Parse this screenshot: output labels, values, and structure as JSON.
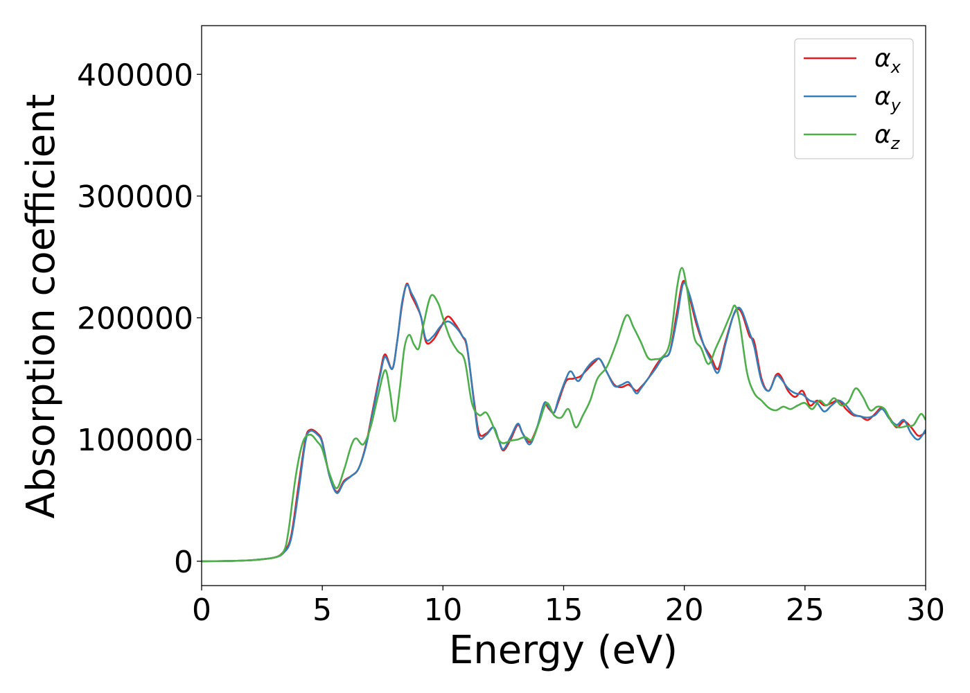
{
  "chart_data": {
    "type": "line",
    "title": "",
    "xlabel": "Energy (eV)",
    "ylabel": "Absorption coefficient",
    "xlim": [
      0,
      30
    ],
    "ylim": [
      -20000,
      440000
    ],
    "xticks": [
      0,
      5,
      10,
      15,
      20,
      25,
      30
    ],
    "yticks": [
      0,
      100000,
      200000,
      300000,
      400000
    ],
    "xtick_labels": [
      "0",
      "5",
      "10",
      "15",
      "20",
      "25",
      "30"
    ],
    "ytick_labels": [
      "0",
      "100000",
      "200000",
      "300000",
      "400000"
    ],
    "grid": false,
    "legend_position": "top-right",
    "series": [
      {
        "name": "α_x",
        "label_main": "α",
        "label_sub": "x",
        "color": "#e41a1c",
        "points": [
          [
            0,
            0
          ],
          [
            1,
            200
          ],
          [
            2,
            800
          ],
          [
            3,
            3000
          ],
          [
            3.4,
            8000
          ],
          [
            3.7,
            20000
          ],
          [
            4.0,
            60000
          ],
          [
            4.3,
            100000
          ],
          [
            4.5,
            108000
          ],
          [
            4.8,
            105000
          ],
          [
            5.0,
            98000
          ],
          [
            5.3,
            70000
          ],
          [
            5.6,
            57000
          ],
          [
            5.9,
            66000
          ],
          [
            6.2,
            70000
          ],
          [
            6.5,
            76000
          ],
          [
            6.8,
            95000
          ],
          [
            7.1,
            125000
          ],
          [
            7.4,
            155000
          ],
          [
            7.6,
            170000
          ],
          [
            7.9,
            158000
          ],
          [
            8.1,
            180000
          ],
          [
            8.3,
            210000
          ],
          [
            8.5,
            228000
          ],
          [
            8.7,
            218000
          ],
          [
            8.9,
            210000
          ],
          [
            9.1,
            200000
          ],
          [
            9.3,
            180000
          ],
          [
            9.6,
            182000
          ],
          [
            9.9,
            192000
          ],
          [
            10.2,
            201000
          ],
          [
            10.5,
            195000
          ],
          [
            10.8,
            185000
          ],
          [
            11.0,
            175000
          ],
          [
            11.3,
            130000
          ],
          [
            11.5,
            105000
          ],
          [
            11.8,
            105000
          ],
          [
            12.1,
            110000
          ],
          [
            12.3,
            100000
          ],
          [
            12.5,
            91000
          ],
          [
            12.8,
            100000
          ],
          [
            13.1,
            112000
          ],
          [
            13.3,
            105000
          ],
          [
            13.6,
            98000
          ],
          [
            13.9,
            110000
          ],
          [
            14.2,
            128000
          ],
          [
            14.4,
            125000
          ],
          [
            14.6,
            122000
          ],
          [
            14.8,
            132000
          ],
          [
            15.1,
            148000
          ],
          [
            15.4,
            150000
          ],
          [
            15.7,
            152000
          ],
          [
            16.0,
            158000
          ],
          [
            16.3,
            164000
          ],
          [
            16.5,
            166000
          ],
          [
            16.8,
            155000
          ],
          [
            17.1,
            145000
          ],
          [
            17.4,
            143000
          ],
          [
            17.7,
            145000
          ],
          [
            18.0,
            140000
          ],
          [
            18.2,
            143000
          ],
          [
            18.5,
            150000
          ],
          [
            18.8,
            160000
          ],
          [
            19.1,
            168000
          ],
          [
            19.4,
            172000
          ],
          [
            19.7,
            205000
          ],
          [
            19.95,
            230000
          ],
          [
            20.2,
            218000
          ],
          [
            20.5,
            195000
          ],
          [
            20.8,
            178000
          ],
          [
            21.1,
            168000
          ],
          [
            21.4,
            158000
          ],
          [
            21.7,
            180000
          ],
          [
            22.0,
            200000
          ],
          [
            22.2,
            207000
          ],
          [
            22.4,
            203000
          ],
          [
            22.7,
            185000
          ],
          [
            22.9,
            180000
          ],
          [
            23.2,
            150000
          ],
          [
            23.5,
            140000
          ],
          [
            23.8,
            153000
          ],
          [
            24.0,
            152000
          ],
          [
            24.3,
            140000
          ],
          [
            24.6,
            135000
          ],
          [
            24.9,
            140000
          ],
          [
            25.2,
            128000
          ],
          [
            25.5,
            132000
          ],
          [
            25.8,
            128000
          ],
          [
            26.1,
            130000
          ],
          [
            26.4,
            132000
          ],
          [
            26.7,
            125000
          ],
          [
            27.0,
            120000
          ],
          [
            27.3,
            119000
          ],
          [
            27.6,
            116000
          ],
          [
            27.9,
            121000
          ],
          [
            28.2,
            126000
          ],
          [
            28.5,
            118000
          ],
          [
            28.8,
            110000
          ],
          [
            29.1,
            115000
          ],
          [
            29.4,
            110000
          ],
          [
            29.7,
            103000
          ],
          [
            30.0,
            106000
          ]
        ]
      },
      {
        "name": "α_y",
        "label_main": "α",
        "label_sub": "y",
        "color": "#377eb8",
        "points": [
          [
            0,
            0
          ],
          [
            1,
            200
          ],
          [
            2,
            800
          ],
          [
            3,
            3000
          ],
          [
            3.4,
            7000
          ],
          [
            3.7,
            18000
          ],
          [
            4.0,
            55000
          ],
          [
            4.3,
            98000
          ],
          [
            4.5,
            107000
          ],
          [
            4.8,
            104000
          ],
          [
            5.0,
            97000
          ],
          [
            5.3,
            70000
          ],
          [
            5.6,
            56000
          ],
          [
            5.9,
            65000
          ],
          [
            6.2,
            70000
          ],
          [
            6.5,
            76000
          ],
          [
            6.8,
            94000
          ],
          [
            7.1,
            123000
          ],
          [
            7.4,
            153000
          ],
          [
            7.6,
            168000
          ],
          [
            7.9,
            158000
          ],
          [
            8.1,
            180000
          ],
          [
            8.3,
            212000
          ],
          [
            8.5,
            227000
          ],
          [
            8.7,
            220000
          ],
          [
            8.9,
            212000
          ],
          [
            9.1,
            200000
          ],
          [
            9.3,
            182000
          ],
          [
            9.6,
            185000
          ],
          [
            9.9,
            193000
          ],
          [
            10.2,
            197000
          ],
          [
            10.5,
            193000
          ],
          [
            10.8,
            185000
          ],
          [
            11.0,
            176000
          ],
          [
            11.3,
            128000
          ],
          [
            11.5,
            102000
          ],
          [
            11.8,
            104000
          ],
          [
            12.1,
            110000
          ],
          [
            12.3,
            100000
          ],
          [
            12.5,
            92000
          ],
          [
            12.8,
            102000
          ],
          [
            13.1,
            113000
          ],
          [
            13.3,
            105000
          ],
          [
            13.6,
            96000
          ],
          [
            13.9,
            110000
          ],
          [
            14.2,
            130000
          ],
          [
            14.4,
            126000
          ],
          [
            14.6,
            122000
          ],
          [
            14.8,
            134000
          ],
          [
            15.1,
            150000
          ],
          [
            15.3,
            156000
          ],
          [
            15.6,
            148000
          ],
          [
            15.9,
            157000
          ],
          [
            16.2,
            164000
          ],
          [
            16.5,
            166000
          ],
          [
            16.8,
            155000
          ],
          [
            17.1,
            144000
          ],
          [
            17.4,
            145000
          ],
          [
            17.7,
            147000
          ],
          [
            18.0,
            138000
          ],
          [
            18.2,
            142000
          ],
          [
            18.5,
            150000
          ],
          [
            18.8,
            158000
          ],
          [
            19.1,
            167000
          ],
          [
            19.4,
            172000
          ],
          [
            19.7,
            200000
          ],
          [
            19.95,
            228000
          ],
          [
            20.2,
            220000
          ],
          [
            20.5,
            198000
          ],
          [
            20.8,
            178000
          ],
          [
            21.1,
            165000
          ],
          [
            21.4,
            155000
          ],
          [
            21.7,
            178000
          ],
          [
            22.0,
            200000
          ],
          [
            22.2,
            208000
          ],
          [
            22.4,
            205000
          ],
          [
            22.7,
            188000
          ],
          [
            22.9,
            176000
          ],
          [
            23.2,
            148000
          ],
          [
            23.5,
            140000
          ],
          [
            23.8,
            152000
          ],
          [
            24.0,
            150000
          ],
          [
            24.3,
            142000
          ],
          [
            24.6,
            138000
          ],
          [
            24.9,
            137000
          ],
          [
            25.2,
            132000
          ],
          [
            25.5,
            130000
          ],
          [
            25.8,
            123000
          ],
          [
            26.1,
            128000
          ],
          [
            26.4,
            132000
          ],
          [
            26.7,
            128000
          ],
          [
            27.0,
            121000
          ],
          [
            27.3,
            119000
          ],
          [
            27.6,
            118000
          ],
          [
            27.9,
            120000
          ],
          [
            28.2,
            125000
          ],
          [
            28.5,
            117000
          ],
          [
            28.8,
            112000
          ],
          [
            29.1,
            116000
          ],
          [
            29.4,
            105000
          ],
          [
            29.7,
            100000
          ],
          [
            30.0,
            108000
          ]
        ]
      },
      {
        "name": "α_z",
        "label_main": "α",
        "label_sub": "z",
        "color": "#4daf4a",
        "points": [
          [
            0,
            0
          ],
          [
            1,
            200
          ],
          [
            2,
            800
          ],
          [
            3,
            3000
          ],
          [
            3.4,
            8000
          ],
          [
            3.6,
            25000
          ],
          [
            3.9,
            70000
          ],
          [
            4.2,
            98000
          ],
          [
            4.5,
            104000
          ],
          [
            4.8,
            98000
          ],
          [
            5.0,
            92000
          ],
          [
            5.3,
            72000
          ],
          [
            5.6,
            60000
          ],
          [
            5.9,
            75000
          ],
          [
            6.2,
            95000
          ],
          [
            6.4,
            101000
          ],
          [
            6.7,
            96000
          ],
          [
            7.0,
            110000
          ],
          [
            7.3,
            135000
          ],
          [
            7.6,
            157000
          ],
          [
            7.8,
            140000
          ],
          [
            8.0,
            115000
          ],
          [
            8.2,
            140000
          ],
          [
            8.4,
            175000
          ],
          [
            8.6,
            186000
          ],
          [
            8.8,
            178000
          ],
          [
            9.0,
            175000
          ],
          [
            9.2,
            195000
          ],
          [
            9.5,
            218000
          ],
          [
            9.8,
            212000
          ],
          [
            10.0,
            200000
          ],
          [
            10.3,
            183000
          ],
          [
            10.6,
            173000
          ],
          [
            10.9,
            165000
          ],
          [
            11.2,
            130000
          ],
          [
            11.5,
            120000
          ],
          [
            11.8,
            122000
          ],
          [
            12.1,
            110000
          ],
          [
            12.3,
            100000
          ],
          [
            12.5,
            97000
          ],
          [
            12.8,
            99000
          ],
          [
            13.1,
            100000
          ],
          [
            13.4,
            102000
          ],
          [
            13.7,
            100000
          ],
          [
            14.0,
            115000
          ],
          [
            14.3,
            130000
          ],
          [
            14.6,
            120000
          ],
          [
            14.9,
            118000
          ],
          [
            15.2,
            125000
          ],
          [
            15.5,
            110000
          ],
          [
            15.8,
            120000
          ],
          [
            16.1,
            132000
          ],
          [
            16.4,
            150000
          ],
          [
            16.8,
            160000
          ],
          [
            17.2,
            180000
          ],
          [
            17.6,
            202000
          ],
          [
            17.9,
            192000
          ],
          [
            18.2,
            180000
          ],
          [
            18.5,
            167000
          ],
          [
            18.8,
            166000
          ],
          [
            19.1,
            168000
          ],
          [
            19.4,
            180000
          ],
          [
            19.7,
            225000
          ],
          [
            19.9,
            241000
          ],
          [
            20.1,
            225000
          ],
          [
            20.4,
            185000
          ],
          [
            20.7,
            175000
          ],
          [
            21.0,
            162000
          ],
          [
            21.3,
            175000
          ],
          [
            21.6,
            188000
          ],
          [
            21.9,
            202000
          ],
          [
            22.1,
            210000
          ],
          [
            22.3,
            195000
          ],
          [
            22.6,
            155000
          ],
          [
            22.9,
            138000
          ],
          [
            23.2,
            132000
          ],
          [
            23.5,
            126000
          ],
          [
            23.8,
            124000
          ],
          [
            24.1,
            127000
          ],
          [
            24.4,
            125000
          ],
          [
            24.7,
            128000
          ],
          [
            25.0,
            130000
          ],
          [
            25.3,
            125000
          ],
          [
            25.6,
            132000
          ],
          [
            25.9,
            128000
          ],
          [
            26.2,
            134000
          ],
          [
            26.5,
            128000
          ],
          [
            26.8,
            131000
          ],
          [
            27.1,
            142000
          ],
          [
            27.4,
            135000
          ],
          [
            27.7,
            124000
          ],
          [
            28.0,
            127000
          ],
          [
            28.3,
            125000
          ],
          [
            28.6,
            114000
          ],
          [
            28.9,
            110000
          ],
          [
            29.2,
            111000
          ],
          [
            29.5,
            112000
          ],
          [
            29.8,
            121000
          ],
          [
            30.0,
            116000
          ]
        ]
      }
    ]
  }
}
